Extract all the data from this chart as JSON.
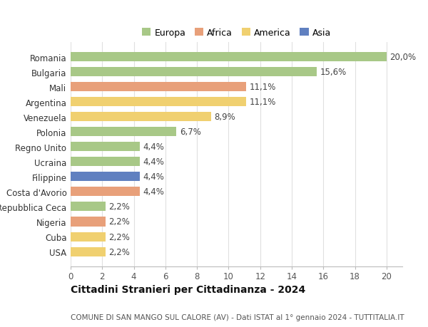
{
  "categories": [
    "Romania",
    "Bulgaria",
    "Mali",
    "Argentina",
    "Venezuela",
    "Polonia",
    "Regno Unito",
    "Ucraina",
    "Filippine",
    "Costa d'Avorio",
    "Repubblica Ceca",
    "Nigeria",
    "Cuba",
    "USA"
  ],
  "values": [
    20.0,
    15.6,
    11.1,
    11.1,
    8.9,
    6.7,
    4.4,
    4.4,
    4.4,
    4.4,
    2.2,
    2.2,
    2.2,
    2.2
  ],
  "labels": [
    "20,0%",
    "15,6%",
    "11,1%",
    "11,1%",
    "8,9%",
    "6,7%",
    "4,4%",
    "4,4%",
    "4,4%",
    "4,4%",
    "2,2%",
    "2,2%",
    "2,2%",
    "2,2%"
  ],
  "colors": [
    "#a8c887",
    "#a8c887",
    "#e8a07a",
    "#f0d070",
    "#f0d070",
    "#a8c887",
    "#a8c887",
    "#a8c887",
    "#6080c0",
    "#e8a07a",
    "#a8c887",
    "#e8a07a",
    "#f0d070",
    "#f0d070"
  ],
  "legend_labels": [
    "Europa",
    "Africa",
    "America",
    "Asia"
  ],
  "legend_colors": [
    "#a8c887",
    "#e8a07a",
    "#f0d070",
    "#6080c0"
  ],
  "title": "Cittadini Stranieri per Cittadinanza - 2024",
  "subtitle": "COMUNE DI SAN MANGO SUL CALORE (AV) - Dati ISTAT al 1° gennaio 2024 - TUTTITALIA.IT",
  "xlim": [
    0,
    21
  ],
  "xticks": [
    0,
    2,
    4,
    6,
    8,
    10,
    12,
    14,
    16,
    18,
    20
  ],
  "background_color": "#ffffff",
  "grid_color": "#e0e0e0",
  "bar_height": 0.62,
  "label_fontsize": 8.5,
  "tick_fontsize": 8.5,
  "title_fontsize": 10,
  "subtitle_fontsize": 7.5
}
